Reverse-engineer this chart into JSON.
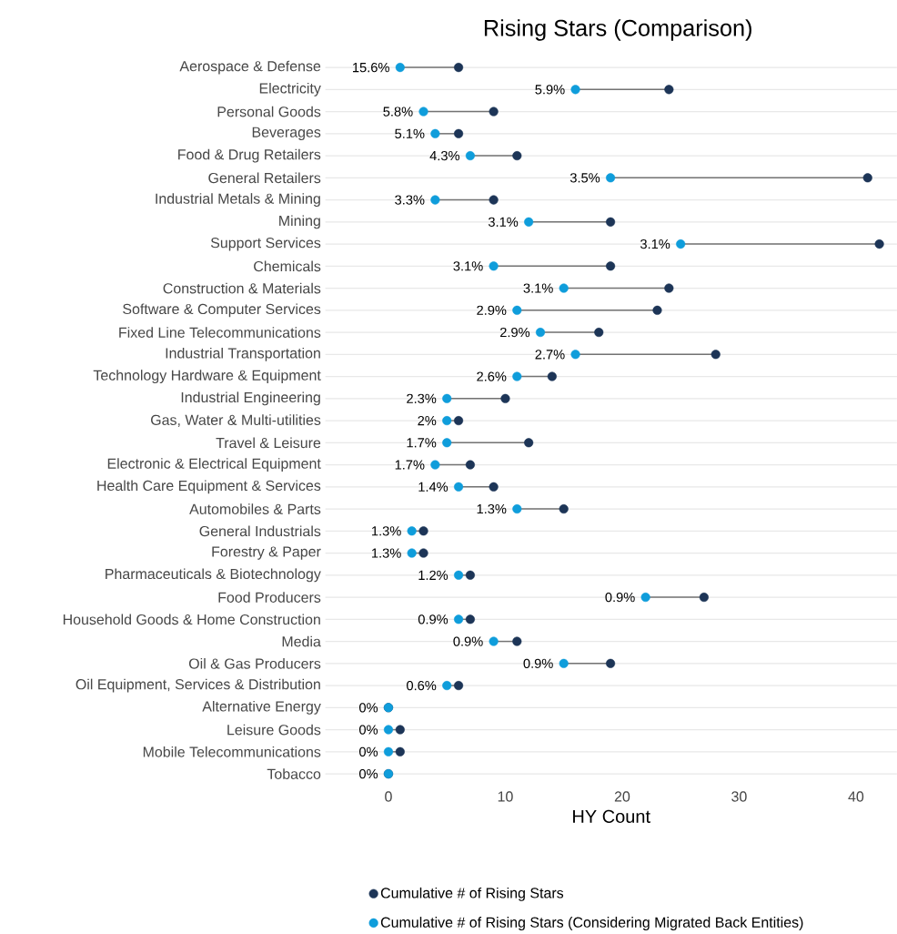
{
  "chart_data": {
    "type": "scatter",
    "orientation": "horizontal",
    "title": "Rising Stars (Comparison)",
    "xlabel": "HY Count",
    "categories": [
      "Aerospace & Defense",
      "Electricity",
      "Personal Goods",
      "Beverages",
      "Food & Drug Retailers",
      "General Retailers",
      "Industrial Metals & Mining",
      "Mining",
      "Support Services",
      "Chemicals",
      "Construction & Materials",
      "Software & Computer Services",
      "Fixed Line Telecommunications",
      "Industrial Transportation",
      "Technology Hardware & Equipment",
      "Industrial Engineering",
      "Gas, Water & Multi-utilities",
      "Travel & Leisure",
      "Electronic & Electrical Equipment",
      "Health Care Equipment & Services",
      "Automobiles & Parts",
      "General Industrials",
      "Forestry & Paper",
      "Pharmaceuticals & Biotechnology",
      "Food Producers",
      "Household Goods & Home Construction",
      "Media",
      "Oil & Gas Producers",
      "Oil Equipment, Services & Distribution",
      "Alternative Energy",
      "Leisure Goods",
      "Mobile Telecommunications",
      "Tobacco"
    ],
    "series": [
      {
        "name": "Cumulative # of Rising Stars",
        "color": "#1d3557",
        "values": [
          6,
          24,
          9,
          6,
          11,
          41,
          9,
          19,
          42,
          19,
          24,
          23,
          18,
          28,
          14,
          10,
          6,
          12,
          7,
          9,
          15,
          3,
          3,
          7,
          27,
          7,
          11,
          19,
          6,
          0,
          1,
          1,
          0
        ]
      },
      {
        "name": "Cumulative # of Rising Stars (Considering Migrated Back Entities)",
        "color": "#0f9ddb",
        "values": [
          1,
          16,
          3,
          4,
          7,
          19,
          4,
          12,
          25,
          9,
          15,
          11,
          13,
          16,
          11,
          5,
          5,
          5,
          4,
          6,
          11,
          2,
          2,
          6,
          22,
          6,
          9,
          15,
          5,
          0,
          0,
          0,
          0
        ]
      }
    ],
    "annotations": [
      {
        "text": "15.6%",
        "x": 1,
        "y": "Aerospace & Defense"
      },
      {
        "text": "5.9%",
        "x": 16,
        "y": "Electricity"
      },
      {
        "text": "5.8%",
        "x": 3,
        "y": "Personal Goods"
      },
      {
        "text": "5.1%",
        "x": 4,
        "y": "Beverages"
      },
      {
        "text": "4.3%",
        "x": 7,
        "y": "Food & Drug Retailers"
      },
      {
        "text": "3.5%",
        "x": 19,
        "y": "General Retailers"
      },
      {
        "text": "3.3%",
        "x": 4,
        "y": "Industrial Metals & Mining"
      },
      {
        "text": "3.1%",
        "x": 12,
        "y": "Mining"
      },
      {
        "text": "3.1%",
        "x": 25,
        "y": "Support Services"
      },
      {
        "text": "3.1%",
        "x": 9,
        "y": "Chemicals"
      },
      {
        "text": "3.1%",
        "x": 15,
        "y": "Construction & Materials"
      },
      {
        "text": "2.9%",
        "x": 11,
        "y": "Software & Computer Services"
      },
      {
        "text": "2.9%",
        "x": 13,
        "y": "Fixed Line Telecommunications"
      },
      {
        "text": "2.7%",
        "x": 16,
        "y": "Industrial Transportation"
      },
      {
        "text": "2.6%",
        "x": 11,
        "y": "Technology Hardware & Equipment"
      },
      {
        "text": "2.3%",
        "x": 5,
        "y": "Industrial Engineering"
      },
      {
        "text": "2%",
        "x": 5,
        "y": "Gas, Water & Multi-utilities"
      },
      {
        "text": "1.7%",
        "x": 5,
        "y": "Travel & Leisure"
      },
      {
        "text": "1.7%",
        "x": 4,
        "y": "Electronic & Electrical Equipment"
      },
      {
        "text": "1.4%",
        "x": 6,
        "y": "Health Care Equipment & Services"
      },
      {
        "text": "1.3%",
        "x": 11,
        "y": "Automobiles & Parts"
      },
      {
        "text": "1.3%",
        "x": 2,
        "y": "General Industrials"
      },
      {
        "text": "1.3%",
        "x": 2,
        "y": "Forestry & Paper"
      },
      {
        "text": "1.2%",
        "x": 6,
        "y": "Pharmaceuticals & Biotechnology"
      },
      {
        "text": "0.9%",
        "x": 22,
        "y": "Food Producers"
      },
      {
        "text": "0.9%",
        "x": 6,
        "y": "Household Goods & Home Construction"
      },
      {
        "text": "0.9%",
        "x": 9,
        "y": "Media"
      },
      {
        "text": "0.9%",
        "x": 15,
        "y": "Oil & Gas Producers"
      },
      {
        "text": "0.6%",
        "x": 5,
        "y": "Oil Equipment, Services & Distribution"
      },
      {
        "text": "0%",
        "x": 0,
        "y": "Alternative Energy"
      },
      {
        "text": "0%",
        "x": 0,
        "y": "Leisure Goods"
      },
      {
        "text": "0%",
        "x": 0,
        "y": "Mobile Telecommunications"
      },
      {
        "text": "0%",
        "x": 0,
        "y": "Tobacco"
      }
    ],
    "xlim": [
      -5.4,
      43.5
    ],
    "xticks": [
      0,
      10,
      20,
      30,
      40
    ],
    "grid": "y",
    "legend": "bottom"
  }
}
